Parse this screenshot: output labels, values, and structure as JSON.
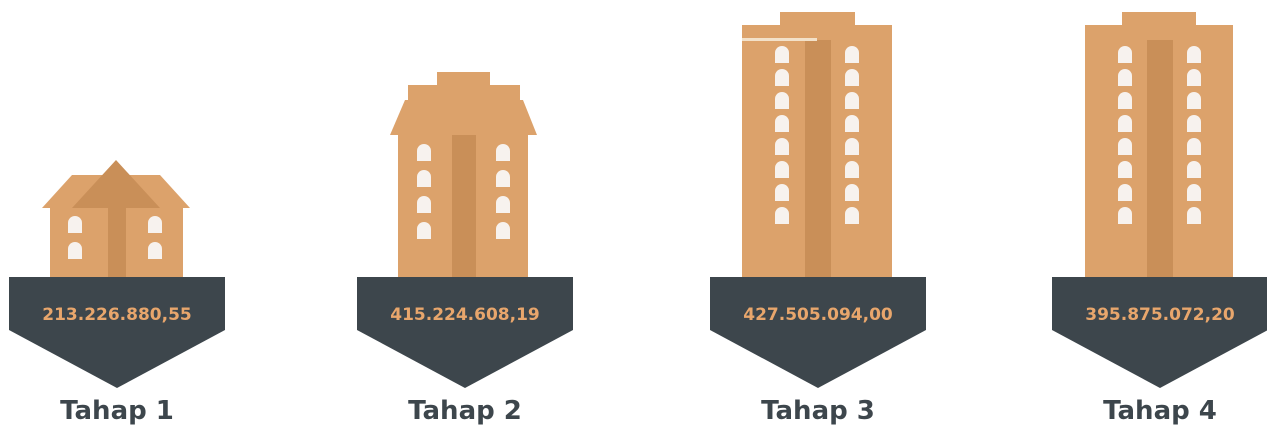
{
  "stages": [
    {
      "label": "Tahap 1",
      "amount": "213.226.880,55"
    },
    {
      "label": "Tahap 2",
      "amount": "415.224.608,19"
    },
    {
      "label": "Tahap 3",
      "amount": "427.505.094,00"
    },
    {
      "label": "Tahap 4",
      "amount": "395.875.072,20"
    }
  ]
}
